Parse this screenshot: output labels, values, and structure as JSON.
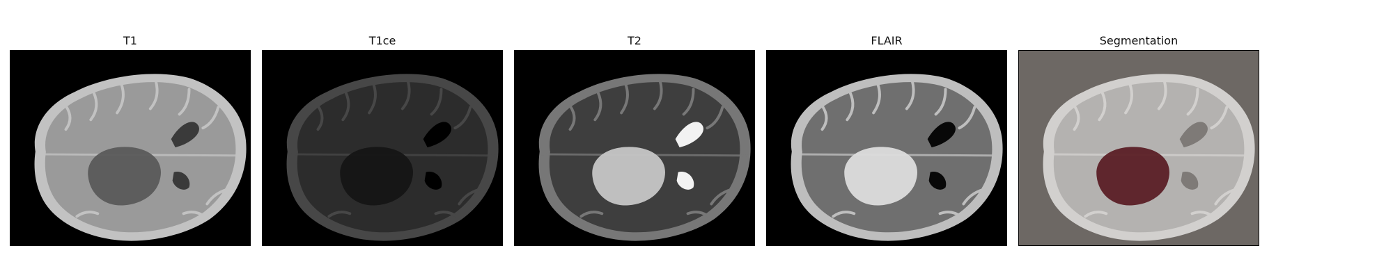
{
  "panels": [
    {
      "title": "T1",
      "brain": "#9a9a9a",
      "cortex": "#c2c2c2",
      "lesion": "#5a5a5a",
      "ventricle": "#3a3a3a",
      "bg": "#000000"
    },
    {
      "title": "T1ce",
      "brain": "#2c2c2c",
      "cortex": "#474747",
      "lesion": "#151515",
      "ventricle": "#000000",
      "bg": "#000000"
    },
    {
      "title": "T2",
      "brain": "#3e3e3e",
      "cortex": "#777777",
      "lesion": "#c6c6c6",
      "ventricle": "#f2f2f2",
      "bg": "#000000"
    },
    {
      "title": "FLAIR",
      "brain": "#6f6f6f",
      "cortex": "#bebebe",
      "lesion": "#dcdcdc",
      "ventricle": "#080808",
      "bg": "#000000"
    },
    {
      "title": "Segmentation",
      "brain": "#b4b2b0",
      "cortex": "#d2d0ce",
      "lesion": "#5b1f26",
      "ventricle": "#7e7a77",
      "bg": "#6d6864"
    }
  ]
}
